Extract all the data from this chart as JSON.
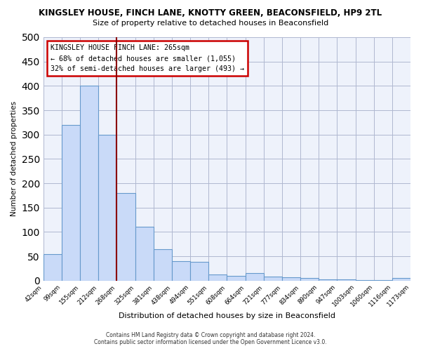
{
  "title": "KINGSLEY HOUSE, FINCH LANE, KNOTTY GREEN, BEACONSFIELD, HP9 2TL",
  "subtitle": "Size of property relative to detached houses in Beaconsfield",
  "xlabel": "Distribution of detached houses by size in Beaconsfield",
  "ylabel": "Number of detached properties",
  "bin_labels": [
    "42sqm",
    "99sqm",
    "155sqm",
    "212sqm",
    "268sqm",
    "325sqm",
    "381sqm",
    "438sqm",
    "494sqm",
    "551sqm",
    "608sqm",
    "664sqm",
    "721sqm",
    "777sqm",
    "834sqm",
    "890sqm",
    "947sqm",
    "1003sqm",
    "1060sqm",
    "1116sqm",
    "1173sqm"
  ],
  "bar_values": [
    55,
    320,
    400,
    300,
    180,
    110,
    65,
    40,
    38,
    12,
    10,
    16,
    8,
    7,
    5,
    3,
    2,
    1,
    1,
    5
  ],
  "bar_color": "#c9daf8",
  "bar_edge_color": "#6699cc",
  "ylim": [
    0,
    500
  ],
  "yticks": [
    0,
    50,
    100,
    150,
    200,
    250,
    300,
    350,
    400,
    450,
    500
  ],
  "vline_x": 4,
  "vline_color": "#8b0000",
  "annotation_title": "KINGSLEY HOUSE FINCH LANE: 265sqm",
  "annotation_line1": "← 68% of detached houses are smaller (1,055)",
  "annotation_line2": "32% of semi-detached houses are larger (493) →",
  "annotation_box_color": "#ffffff",
  "annotation_box_edge": "#cc0000",
  "footer_line1": "Contains HM Land Registry data © Crown copyright and database right 2024.",
  "footer_line2": "Contains public sector information licensed under the Open Government Licence v3.0.",
  "background_color": "#ffffff",
  "axes_bg_color": "#eef2fb",
  "grid_color": "#b0b8d0"
}
